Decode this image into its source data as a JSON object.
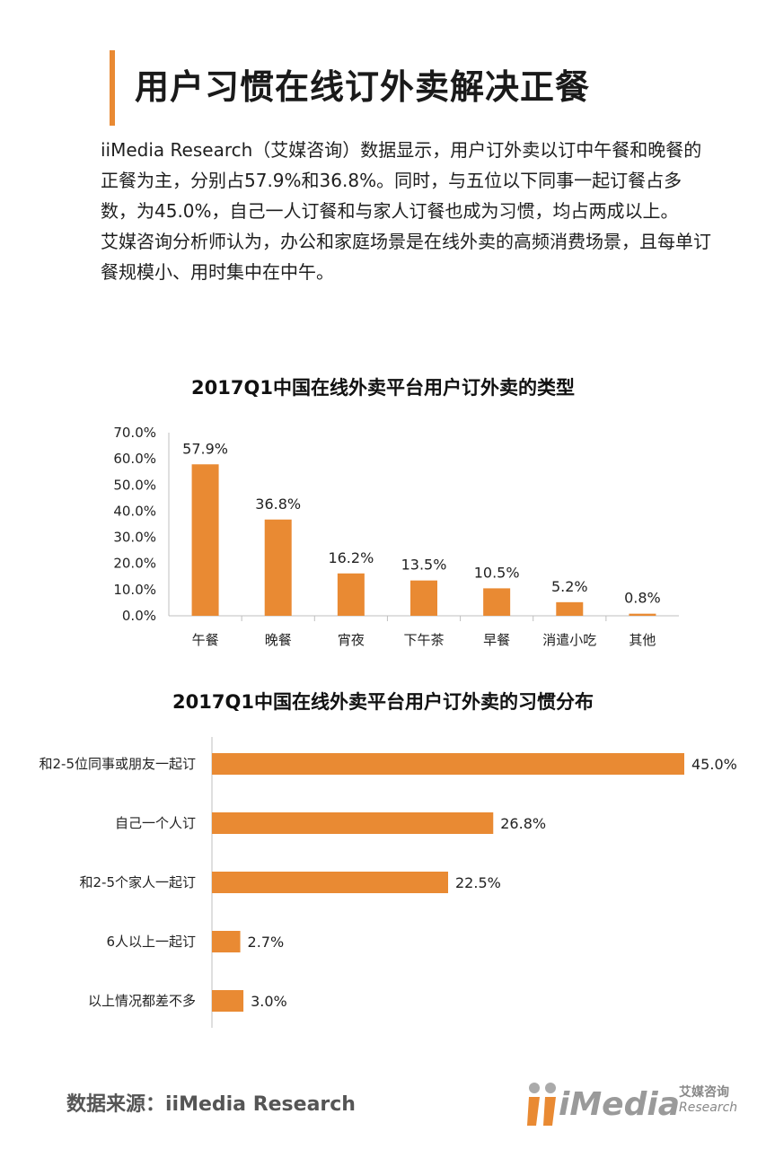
{
  "header": {
    "title": "用户习惯在线订外卖解决正餐"
  },
  "intro": {
    "paragraph1": "iiMedia Research（艾媒咨询）数据显示，用户订外卖以订中午餐和晚餐的正餐为主，分别占57.9%和36.8%。同时，与五位以下同事一起订餐占多数，为45.0%，自己一人订餐和与家人订餐也成为习惯，均占两成以上。",
    "paragraph2": "艾媒咨询分析师认为，办公和家庭场景是在线外卖的高频消费场景，且每单订餐规模小、用时集中在中午。"
  },
  "colors": {
    "accent": "#e98a33",
    "bar": "#e98a33"
  },
  "chart_data": [
    {
      "type": "bar",
      "title": "2017Q1中国在线外卖平台用户订外卖的类型",
      "categories": [
        "午餐",
        "晚餐",
        "宵夜",
        "下午茶",
        "早餐",
        "消遣小吃",
        "其他"
      ],
      "values": [
        57.9,
        36.8,
        16.2,
        13.5,
        10.5,
        5.2,
        0.8
      ],
      "value_labels": [
        "57.9%",
        "36.8%",
        "16.2%",
        "13.5%",
        "10.5%",
        "5.2%",
        "0.8%"
      ],
      "yticks": [
        "0.0%",
        "10.0%",
        "20.0%",
        "30.0%",
        "40.0%",
        "50.0%",
        "60.0%",
        "70.0%"
      ],
      "ylim": [
        0,
        70
      ],
      "xlabel": "",
      "ylabel": "",
      "grid": false
    },
    {
      "type": "bar",
      "orientation": "horizontal",
      "title": "2017Q1中国在线外卖平台用户订外卖的习惯分布",
      "categories": [
        "和2-5位同事或朋友一起订",
        "自己一个人订",
        "和2-5个家人一起订",
        "6人以上一起订",
        "以上情况都差不多"
      ],
      "values": [
        45.0,
        26.8,
        22.5,
        2.7,
        3.0
      ],
      "value_labels": [
        "45.0%",
        "26.8%",
        "22.5%",
        "2.7%",
        "3.0%"
      ],
      "xlim": [
        0,
        45
      ],
      "xlabel": "",
      "ylabel": "",
      "grid": false
    }
  ],
  "footer": {
    "source": "数据来源：iiMedia Research"
  },
  "logo": {
    "text": "iMedia",
    "cn": "艾媒咨询",
    "en": "Research"
  }
}
